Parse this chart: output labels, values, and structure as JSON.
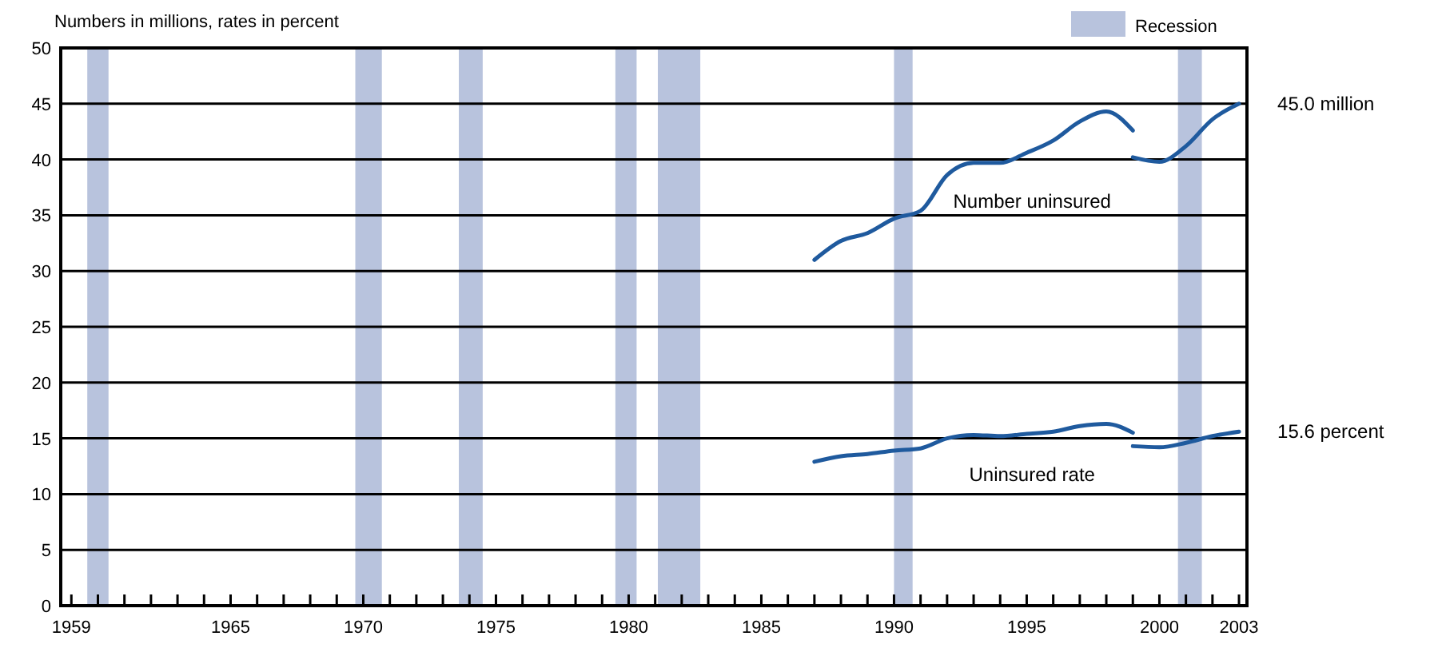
{
  "chart_data": {
    "type": "line",
    "ylabel": "Numbers in millions, rates in percent",
    "xlim": [
      1958.6,
      2003.3
    ],
    "ylim": [
      0,
      50
    ],
    "yticks": [
      0,
      5,
      10,
      15,
      20,
      25,
      30,
      35,
      40,
      45,
      50
    ],
    "xticks": [
      1959,
      {
        "value": 1960,
        "label": null
      },
      {
        "value": 1961,
        "label": null
      },
      {
        "value": 1962,
        "label": null
      },
      {
        "value": 1963,
        "label": null
      },
      {
        "value": 1964,
        "label": null
      },
      1965,
      {
        "value": 1966,
        "label": null
      },
      {
        "value": 1967,
        "label": null
      },
      {
        "value": 1968,
        "label": null
      },
      {
        "value": 1969,
        "label": null
      },
      1970,
      {
        "value": 1971,
        "label": null
      },
      {
        "value": 1972,
        "label": null
      },
      {
        "value": 1973,
        "label": null
      },
      {
        "value": 1974,
        "label": null
      },
      1975,
      {
        "value": 1976,
        "label": null
      },
      {
        "value": 1977,
        "label": null
      },
      {
        "value": 1978,
        "label": null
      },
      {
        "value": 1979,
        "label": null
      },
      1980,
      {
        "value": 1981,
        "label": null
      },
      {
        "value": 1982,
        "label": null
      },
      {
        "value": 1983,
        "label": null
      },
      {
        "value": 1984,
        "label": null
      },
      1985,
      {
        "value": 1986,
        "label": null
      },
      {
        "value": 1987,
        "label": null
      },
      {
        "value": 1988,
        "label": null
      },
      {
        "value": 1989,
        "label": null
      },
      1990,
      {
        "value": 1991,
        "label": null
      },
      {
        "value": 1992,
        "label": null
      },
      {
        "value": 1993,
        "label": null
      },
      {
        "value": 1994,
        "label": null
      },
      1995,
      {
        "value": 1996,
        "label": null
      },
      {
        "value": 1997,
        "label": null
      },
      {
        "value": 1998,
        "label": null
      },
      {
        "value": 1999,
        "label": null
      },
      2000,
      {
        "value": 2001,
        "label": null
      },
      {
        "value": 2002,
        "label": null
      },
      2003
    ],
    "series": [
      {
        "name": "Number uninsured",
        "color": "#1f5a9e",
        "x": [
          1987,
          1988,
          1989,
          1990,
          1991,
          1992,
          1993,
          1994,
          1995,
          1996,
          1997,
          1998,
          1999
        ],
        "values": [
          31.0,
          32.7,
          33.4,
          34.7,
          35.4,
          38.6,
          39.7,
          39.7,
          40.6,
          41.7,
          43.4,
          44.3,
          42.6
        ]
      },
      {
        "color": "#1f5a9e",
        "x": [
          1999,
          2000,
          2001,
          2002,
          2003
        ],
        "values": [
          40.2,
          39.8,
          41.2,
          43.6,
          45.0
        ]
      },
      {
        "name": "Uninsured rate",
        "color": "#1f5a9e",
        "x": [
          1987,
          1988,
          1989,
          1990,
          1991,
          1992,
          1993,
          1994,
          1995,
          1996,
          1997,
          1998,
          1999
        ],
        "values": [
          12.9,
          13.4,
          13.6,
          13.9,
          14.1,
          15.0,
          15.3,
          15.2,
          15.4,
          15.6,
          16.1,
          16.3,
          15.5
        ]
      },
      {
        "color": "#1f5a9e",
        "x": [
          1999,
          2000,
          2001,
          2002,
          2003
        ],
        "values": [
          14.3,
          14.2,
          14.6,
          15.2,
          15.6
        ]
      }
    ],
    "bands": [
      {
        "axis": "x",
        "from": 1959.6,
        "to": 1960.4,
        "label": "Recession",
        "color": "#b8c3dd"
      },
      {
        "axis": "x",
        "from": 1969.7,
        "to": 1970.7,
        "color": "#b8c3dd"
      },
      {
        "axis": "x",
        "from": 1973.6,
        "to": 1974.5,
        "color": "#b8c3dd"
      },
      {
        "axis": "x",
        "from": 1979.5,
        "to": 1980.3,
        "color": "#b8c3dd"
      },
      {
        "axis": "x",
        "from": 1981.1,
        "to": 1982.7,
        "color": "#b8c3dd"
      },
      {
        "axis": "x",
        "from": 1990.0,
        "to": 1990.7,
        "color": "#b8c3dd"
      },
      {
        "axis": "x",
        "from": 2000.7,
        "to": 2001.6,
        "color": "#b8c3dd"
      }
    ],
    "annotations": [
      {
        "text": "45.0 million",
        "x": 2003,
        "y": 45.0
      },
      {
        "text": "15.6 percent",
        "x": 2003,
        "y": 15.6
      }
    ],
    "grid": "y",
    "legend": "top right",
    "marker": "none",
    "line_style": "solid"
  }
}
